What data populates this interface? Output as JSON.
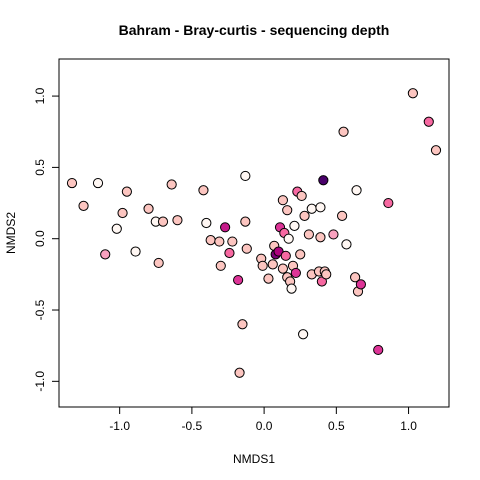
{
  "chart_data": {
    "type": "scatter",
    "title": "Bahram - Bray-curtis - sequencing depth",
    "xlabel": "NMDS1",
    "ylabel": "NMDS2",
    "xlim": [
      -1.42,
      1.28
    ],
    "ylim": [
      -1.18,
      1.26
    ],
    "xticks": [
      -1.0,
      -0.5,
      0.0,
      0.5,
      1.0
    ],
    "xtick_labels": [
      "-1.0",
      "-0.5",
      "0.0",
      "0.5",
      "1.0"
    ],
    "yticks": [
      -1.0,
      -0.5,
      0.0,
      0.5,
      1.0
    ],
    "ytick_labels": [
      "-1.0",
      "-0.5",
      "0.0",
      "0.5",
      "1.0"
    ],
    "grid": false,
    "color_scale": {
      "low": "#FFF7F3",
      "light": "#FCC5C0",
      "mid": "#F768A1",
      "high": "#AE017E",
      "max": "#49006A"
    },
    "points": [
      {
        "x": -1.33,
        "y": 0.39,
        "c": "#FCC5C0"
      },
      {
        "x": -1.15,
        "y": 0.39,
        "c": "#FFF7F3"
      },
      {
        "x": -1.25,
        "y": 0.23,
        "c": "#FCC5C0"
      },
      {
        "x": -1.1,
        "y": -0.11,
        "c": "#F9A1BF"
      },
      {
        "x": -1.02,
        "y": 0.07,
        "c": "#FFF7F3"
      },
      {
        "x": -0.98,
        "y": 0.18,
        "c": "#FCC5C0"
      },
      {
        "x": -0.95,
        "y": 0.33,
        "c": "#FCC5C0"
      },
      {
        "x": -0.89,
        "y": -0.09,
        "c": "#FFF7F3"
      },
      {
        "x": -0.8,
        "y": 0.21,
        "c": "#FCC5C0"
      },
      {
        "x": -0.75,
        "y": 0.12,
        "c": "#FFF7F3"
      },
      {
        "x": -0.73,
        "y": -0.17,
        "c": "#FCC5C0"
      },
      {
        "x": -0.7,
        "y": 0.12,
        "c": "#FCC5C0"
      },
      {
        "x": -0.64,
        "y": 0.38,
        "c": "#FCC5C0"
      },
      {
        "x": -0.6,
        "y": 0.13,
        "c": "#FCC5C0"
      },
      {
        "x": -0.42,
        "y": 0.34,
        "c": "#FCC5C0"
      },
      {
        "x": -0.4,
        "y": 0.11,
        "c": "#FFF7F3"
      },
      {
        "x": -0.37,
        "y": -0.01,
        "c": "#FCC5C0"
      },
      {
        "x": -0.31,
        "y": -0.02,
        "c": "#FCC5C0"
      },
      {
        "x": -0.3,
        "y": -0.19,
        "c": "#FCC5C0"
      },
      {
        "x": -0.27,
        "y": 0.08,
        "c": "#C51B8A"
      },
      {
        "x": -0.24,
        "y": -0.1,
        "c": "#F768A1"
      },
      {
        "x": -0.22,
        "y": -0.02,
        "c": "#FCC5C0"
      },
      {
        "x": -0.18,
        "y": -0.29,
        "c": "#DD3497"
      },
      {
        "x": -0.15,
        "y": -0.6,
        "c": "#FCC5C0"
      },
      {
        "x": -0.17,
        "y": -0.94,
        "c": "#FCC5C0"
      },
      {
        "x": -0.13,
        "y": 0.44,
        "c": "#FFF7F3"
      },
      {
        "x": -0.13,
        "y": 0.12,
        "c": "#FCC5C0"
      },
      {
        "x": -0.12,
        "y": -0.07,
        "c": "#FCC5C0"
      },
      {
        "x": -0.02,
        "y": -0.14,
        "c": "#FCC5C0"
      },
      {
        "x": -0.01,
        "y": -0.19,
        "c": "#FCC5C0"
      },
      {
        "x": 0.03,
        "y": -0.28,
        "c": "#FCC5C0"
      },
      {
        "x": 0.06,
        "y": -0.18,
        "c": "#FCC5C0"
      },
      {
        "x": 0.07,
        "y": -0.05,
        "c": "#FCC5C0"
      },
      {
        "x": 0.08,
        "y": -0.11,
        "c": "#7A0177"
      },
      {
        "x": 0.1,
        "y": -0.09,
        "c": "#AE017E"
      },
      {
        "x": 0.11,
        "y": 0.08,
        "c": "#DD3497"
      },
      {
        "x": 0.13,
        "y": 0.27,
        "c": "#FCC5C0"
      },
      {
        "x": 0.13,
        "y": -0.21,
        "c": "#FCC5C0"
      },
      {
        "x": 0.14,
        "y": 0.04,
        "c": "#F768A1"
      },
      {
        "x": 0.15,
        "y": -0.12,
        "c": "#F768A1"
      },
      {
        "x": 0.16,
        "y": -0.27,
        "c": "#FCC5C0"
      },
      {
        "x": 0.16,
        "y": 0.2,
        "c": "#FCC5C0"
      },
      {
        "x": 0.17,
        "y": 0.0,
        "c": "#FFF7F3"
      },
      {
        "x": 0.18,
        "y": -0.3,
        "c": "#FCC5C0"
      },
      {
        "x": 0.19,
        "y": -0.35,
        "c": "#FFF7F3"
      },
      {
        "x": 0.2,
        "y": -0.19,
        "c": "#FCC5C0"
      },
      {
        "x": 0.21,
        "y": 0.09,
        "c": "#FFF7F3"
      },
      {
        "x": 0.22,
        "y": -0.24,
        "c": "#DD3497"
      },
      {
        "x": 0.23,
        "y": 0.33,
        "c": "#F768A1"
      },
      {
        "x": 0.25,
        "y": -0.11,
        "c": "#FCC5C0"
      },
      {
        "x": 0.26,
        "y": 0.3,
        "c": "#FCC5C0"
      },
      {
        "x": 0.27,
        "y": -0.67,
        "c": "#FFF7F3"
      },
      {
        "x": 0.28,
        "y": 0.16,
        "c": "#FCC5C0"
      },
      {
        "x": 0.31,
        "y": 0.03,
        "c": "#FCC5C0"
      },
      {
        "x": 0.33,
        "y": 0.21,
        "c": "#FFF7F3"
      },
      {
        "x": 0.33,
        "y": -0.25,
        "c": "#FCC5C0"
      },
      {
        "x": 0.38,
        "y": -0.23,
        "c": "#FCC5C0"
      },
      {
        "x": 0.39,
        "y": 0.22,
        "c": "#FFF7F3"
      },
      {
        "x": 0.39,
        "y": 0.01,
        "c": "#FCC5C0"
      },
      {
        "x": 0.4,
        "y": -0.3,
        "c": "#F768A1"
      },
      {
        "x": 0.41,
        "y": 0.41,
        "c": "#49006A"
      },
      {
        "x": 0.42,
        "y": -0.23,
        "c": "#FCC5C0"
      },
      {
        "x": 0.43,
        "y": -0.25,
        "c": "#FCC5C0"
      },
      {
        "x": 0.48,
        "y": 0.03,
        "c": "#F9A1BF"
      },
      {
        "x": 0.54,
        "y": 0.16,
        "c": "#FCC5C0"
      },
      {
        "x": 0.55,
        "y": 0.75,
        "c": "#FCC5C0"
      },
      {
        "x": 0.57,
        "y": -0.04,
        "c": "#FFF7F3"
      },
      {
        "x": 0.63,
        "y": -0.27,
        "c": "#FCC5C0"
      },
      {
        "x": 0.64,
        "y": 0.34,
        "c": "#FFF7F3"
      },
      {
        "x": 0.65,
        "y": -0.37,
        "c": "#FCC5C0"
      },
      {
        "x": 0.67,
        "y": -0.32,
        "c": "#DD3497"
      },
      {
        "x": 0.79,
        "y": -0.78,
        "c": "#DD3497"
      },
      {
        "x": 0.86,
        "y": 0.25,
        "c": "#F768A1"
      },
      {
        "x": 1.03,
        "y": 1.02,
        "c": "#FCC5C0"
      },
      {
        "x": 1.14,
        "y": 0.82,
        "c": "#F768A1"
      },
      {
        "x": 1.19,
        "y": 0.62,
        "c": "#FCC5C0"
      }
    ]
  }
}
